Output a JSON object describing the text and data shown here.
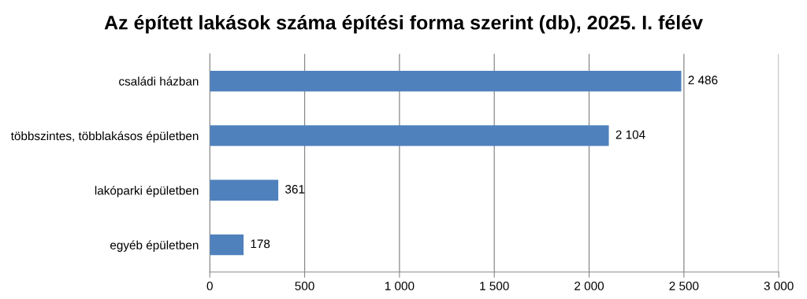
{
  "chart_data": {
    "type": "bar",
    "orientation": "horizontal",
    "title": "Az épített lakások száma építési forma szerint (db), 2025. I. félév",
    "categories": [
      "családi házban",
      "többszintes, többlakásos épületben",
      "lakóparki épületben",
      "egyéb épületben"
    ],
    "values": [
      2486,
      2104,
      361,
      178
    ],
    "value_labels": [
      "2 486",
      "2 104",
      "361",
      "178"
    ],
    "color": "#4f81bd",
    "xlim": [
      0,
      3000
    ],
    "xticks": [
      0,
      500,
      {
        "value": 1000,
        "label": "1 000"
      },
      {
        "value": 1500,
        "label": "1 500"
      },
      {
        "value": 2000,
        "label": "2 000"
      },
      {
        "value": 2500,
        "label": "2 500"
      },
      {
        "value": 3000,
        "label": "3 000"
      }
    ],
    "grid": "x",
    "legend": false
  }
}
